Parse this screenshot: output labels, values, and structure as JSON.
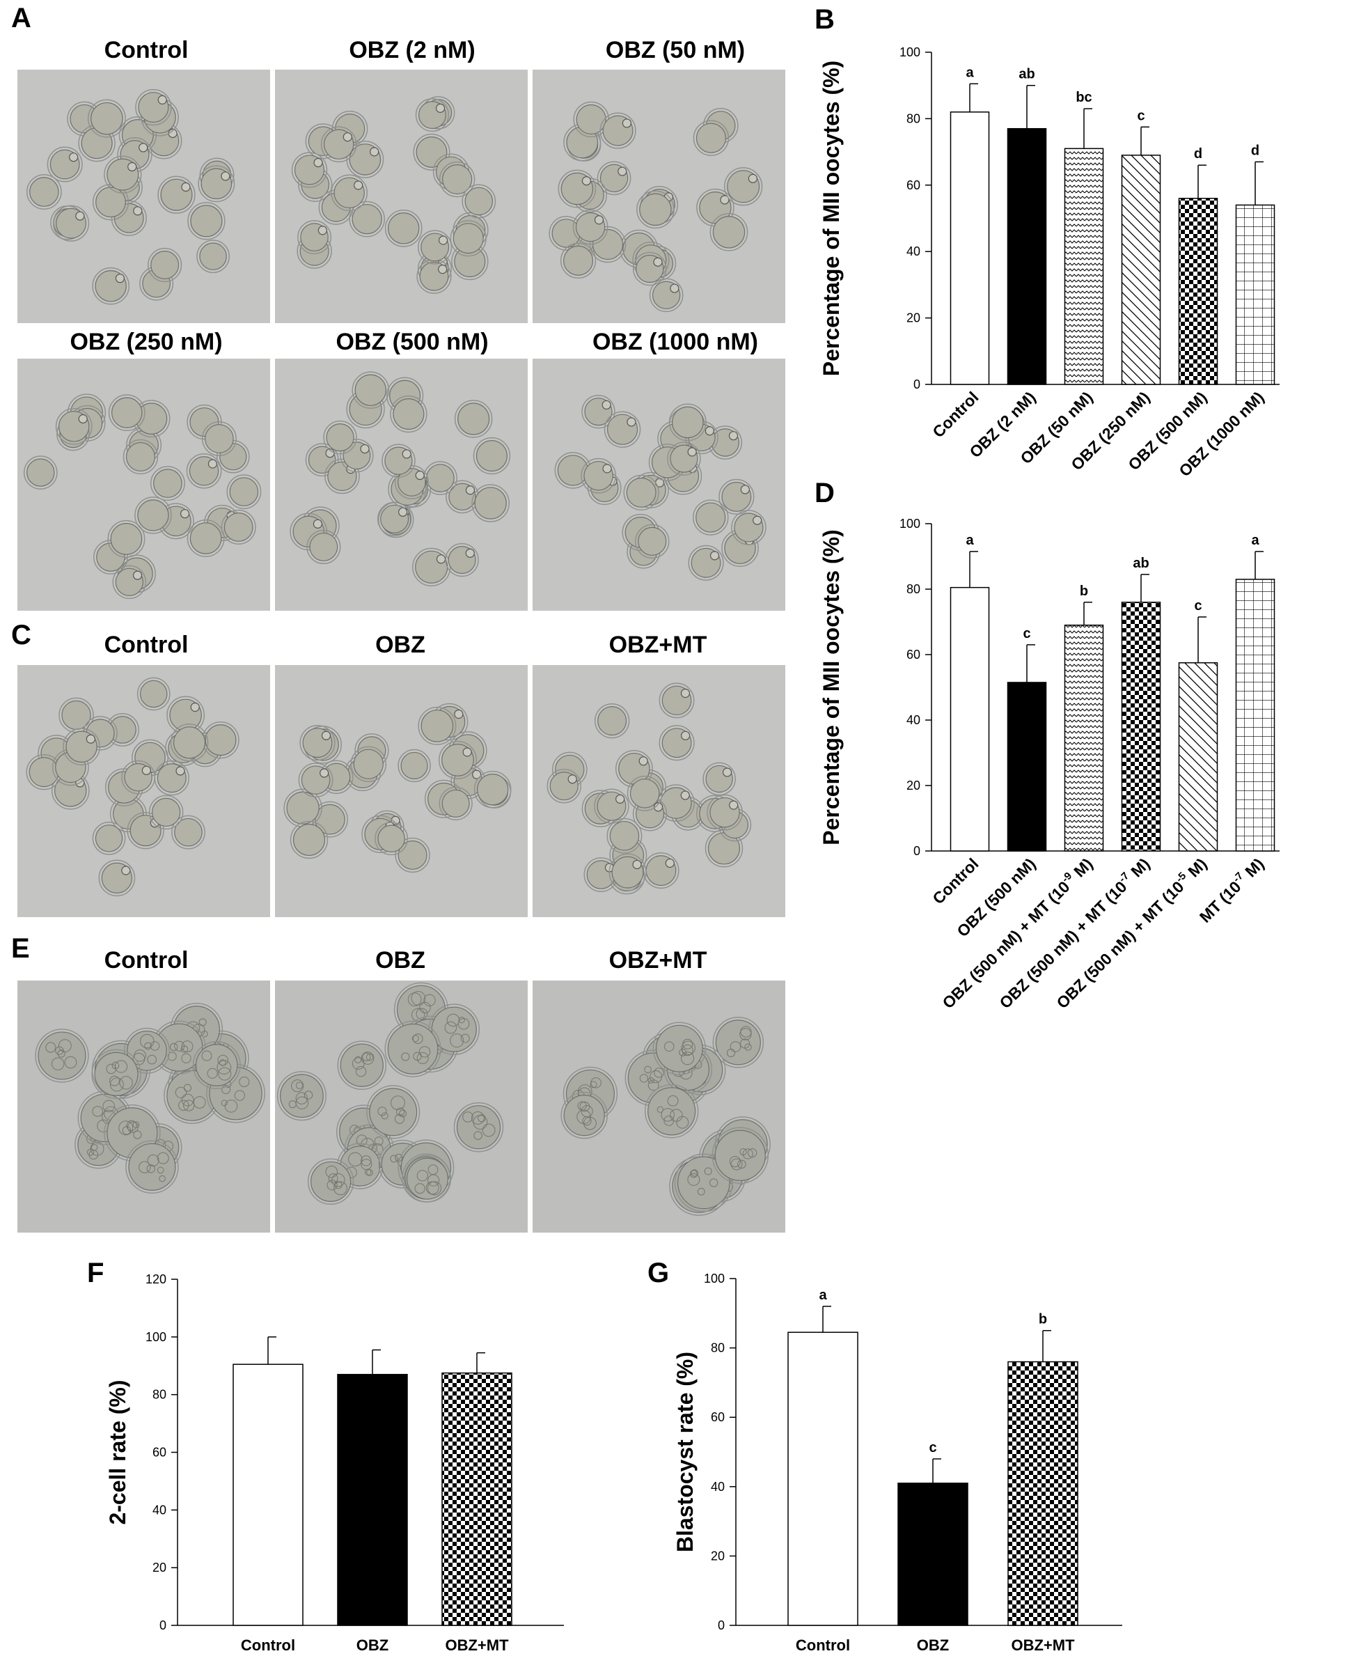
{
  "panels": {
    "A": {
      "letter": "A",
      "images": [
        {
          "title": "Control"
        },
        {
          "title": "OBZ (2 nM)"
        },
        {
          "title": "OBZ (50 nM)"
        },
        {
          "title": "OBZ (250 nM)"
        },
        {
          "title": "OBZ (500 nM)"
        },
        {
          "title": "OBZ (1000 nM)"
        }
      ]
    },
    "C": {
      "letter": "C",
      "images": [
        {
          "title": "Control"
        },
        {
          "title": "OBZ"
        },
        {
          "title": "OBZ+MT"
        }
      ]
    },
    "E": {
      "letter": "E",
      "images": [
        {
          "title": "Control"
        },
        {
          "title": "OBZ"
        },
        {
          "title": "OBZ+MT"
        }
      ]
    }
  },
  "chart_data": [
    {
      "id": "B",
      "letter": "B",
      "type": "bar",
      "ylabel": "Percentage of MII oocytes (%)",
      "ylim": [
        0,
        100
      ],
      "yticks": [
        "0",
        "20",
        "40",
        "60",
        "80",
        "100"
      ],
      "categories": [
        "Control",
        "OBZ (2 nM)",
        "OBZ (50 nM)",
        "OBZ (250 nM)",
        "OBZ (500 nM)",
        "OBZ (1000 nM)"
      ],
      "values": [
        82,
        77,
        71,
        69,
        56,
        54
      ],
      "errors": [
        8.5,
        13,
        12,
        8.5,
        10,
        13
      ],
      "letters": [
        "a",
        "ab",
        "bc",
        "c",
        "d",
        "d"
      ],
      "patterns": [
        "white",
        "black",
        "zigzag",
        "diagonal",
        "checker",
        "grid"
      ]
    },
    {
      "id": "D",
      "letter": "D",
      "type": "bar",
      "ylabel": "Percentage of MII oocytes (%)",
      "ylim": [
        0,
        100
      ],
      "yticks": [
        "0",
        "20",
        "40",
        "60",
        "80",
        "100"
      ],
      "categories": [
        "Control",
        "OBZ (500 nM)",
        "OBZ (500 nM) + MT (10-9 M)",
        "OBZ (500 nM) + MT (10-7 M)",
        "OBZ (500 nM) + MT (10-5 M)",
        "MT (10-7 M)"
      ],
      "category_parts": [
        {
          "base": "Control",
          "sup": "",
          "tail": ""
        },
        {
          "base": "OBZ (500 nM)",
          "sup": "",
          "tail": ""
        },
        {
          "base": "OBZ (500 nM) + MT (10",
          "sup": "-9",
          "tail": " M)"
        },
        {
          "base": "OBZ (500 nM) + MT (10",
          "sup": "-7",
          "tail": " M)"
        },
        {
          "base": "OBZ (500 nM) + MT (10",
          "sup": "-5",
          "tail": " M)"
        },
        {
          "base": "MT (10",
          "sup": "-7",
          "tail": " M)"
        }
      ],
      "values": [
        80.5,
        51.5,
        69,
        76,
        57.5,
        83
      ],
      "errors": [
        11,
        11.5,
        7,
        8.5,
        14,
        8.5
      ],
      "letters": [
        "a",
        "c",
        "b",
        "ab",
        "c",
        "a"
      ],
      "patterns": [
        "white",
        "black",
        "zigzag",
        "checker",
        "diagonal",
        "grid"
      ]
    },
    {
      "id": "F",
      "letter": "F",
      "type": "bar",
      "ylabel": "2-cell rate (%)",
      "ylim": [
        0,
        120
      ],
      "yticks": [
        "0",
        "20",
        "40",
        "60",
        "80",
        "100",
        "120"
      ],
      "categories": [
        "Control",
        "OBZ",
        "OBZ+MT"
      ],
      "values": [
        90.5,
        87,
        87.5
      ],
      "errors": [
        9.5,
        8.5,
        7
      ],
      "letters": [
        "",
        "",
        ""
      ],
      "patterns": [
        "white",
        "black",
        "checker"
      ]
    },
    {
      "id": "G",
      "letter": "G",
      "type": "bar",
      "ylabel": "Blastocyst rate (%)",
      "ylim": [
        0,
        100
      ],
      "yticks": [
        "0",
        "20",
        "40",
        "60",
        "80",
        "100"
      ],
      "categories": [
        "Control",
        "OBZ",
        "OBZ+MT"
      ],
      "values": [
        84.5,
        41,
        76
      ],
      "errors": [
        7.5,
        7,
        9
      ],
      "letters": [
        "a",
        "c",
        "b"
      ],
      "patterns": [
        "white",
        "black",
        "checker"
      ]
    }
  ]
}
